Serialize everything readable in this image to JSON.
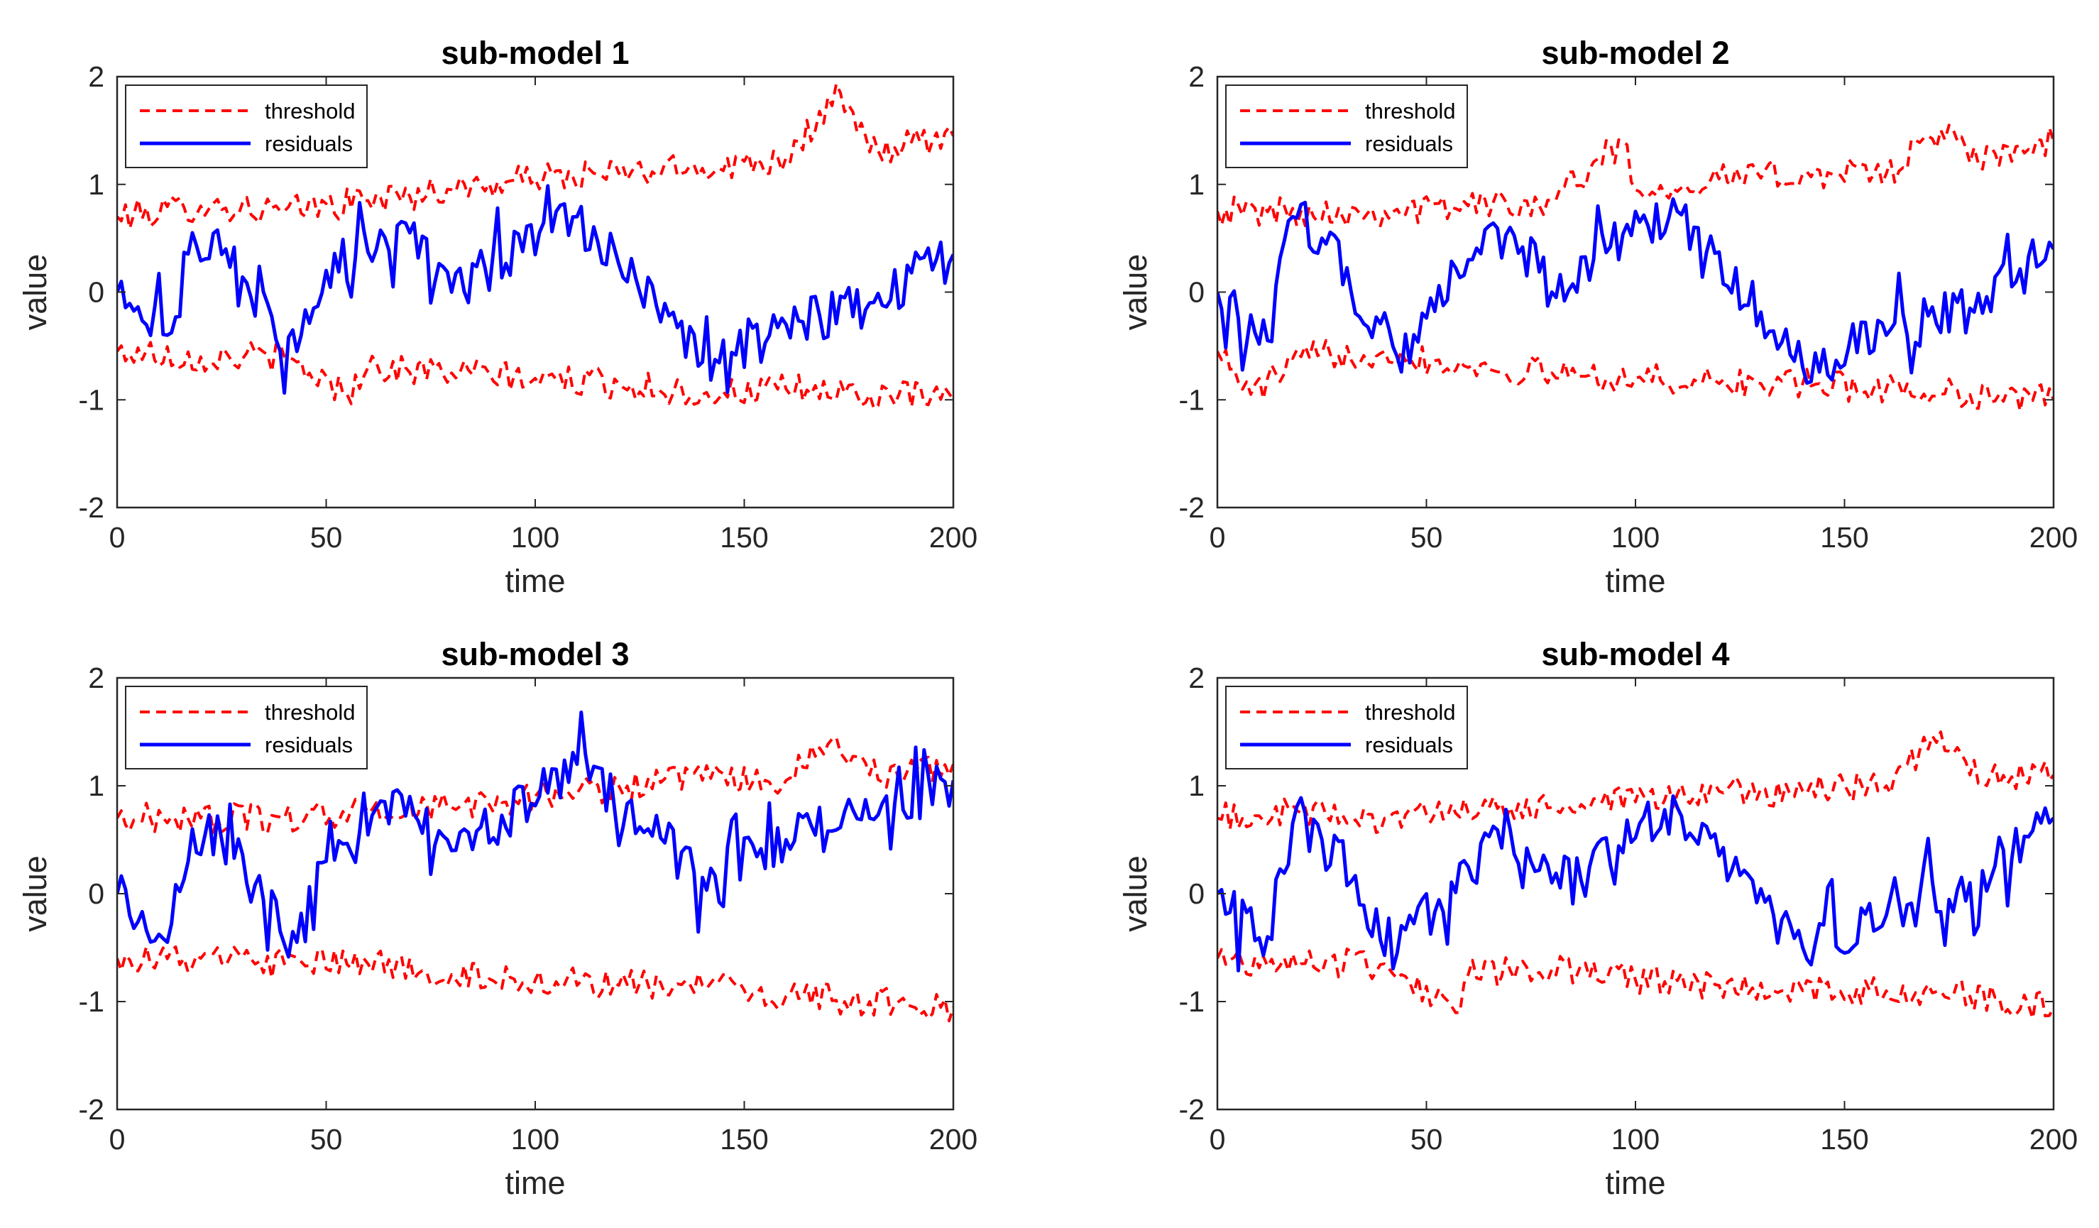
{
  "colors": {
    "threshold": "#ff0000",
    "residuals": "#0000ff",
    "axes": "#262626"
  },
  "chart_data": [
    {
      "type": "line",
      "title": "sub-model 1",
      "xlabel": "time",
      "ylabel": "value",
      "xlim": [
        0,
        200
      ],
      "ylim": [
        -2,
        2
      ],
      "xticks": [
        "0",
        "50",
        "100",
        "150",
        "200"
      ],
      "yticks": [
        "-2",
        "-1",
        "0",
        "1",
        "2"
      ],
      "legend": {
        "placement": "top-left",
        "entries": [
          "threshold",
          "residuals"
        ]
      },
      "series": [
        {
          "name": "threshold upper",
          "style": "dashed",
          "x": [
            0,
            20,
            40,
            60,
            80,
            100,
            120,
            140,
            160,
            173,
            180,
            200
          ],
          "values": [
            0.7,
            0.8,
            0.75,
            0.85,
            0.95,
            1.05,
            1.1,
            1.15,
            1.25,
            1.85,
            1.3,
            1.45
          ]
        },
        {
          "name": "threshold lower",
          "style": "dashed",
          "x": [
            0,
            20,
            40,
            55,
            60,
            80,
            100,
            120,
            140,
            160,
            180,
            200
          ],
          "values": [
            -0.55,
            -0.6,
            -0.6,
            -0.95,
            -0.7,
            -0.75,
            -0.8,
            -0.85,
            -0.95,
            -0.9,
            -0.95,
            -1.0
          ]
        },
        {
          "name": "residuals",
          "style": "solid",
          "x": [
            0,
            12,
            18,
            25,
            43,
            50,
            70,
            80,
            101,
            110,
            140,
            160,
            180,
            200
          ],
          "values": [
            0.0,
            -0.4,
            0.55,
            0.35,
            -0.55,
            0.2,
            0.55,
            0.0,
            0.55,
            0.7,
            -0.65,
            -0.3,
            -0.1,
            0.35
          ]
        }
      ]
    },
    {
      "type": "line",
      "title": "sub-model 2",
      "xlabel": "time",
      "ylabel": "value",
      "xlim": [
        0,
        200
      ],
      "ylim": [
        -2,
        2
      ],
      "xticks": [
        "0",
        "50",
        "100",
        "150",
        "200"
      ],
      "yticks": [
        "-2",
        "-1",
        "0",
        "1",
        "2"
      ],
      "legend": {
        "placement": "top-left",
        "entries": [
          "threshold",
          "residuals"
        ]
      },
      "series": [
        {
          "name": "threshold upper",
          "style": "dashed",
          "x": [
            0,
            20,
            40,
            60,
            80,
            97,
            100,
            120,
            140,
            160,
            175,
            180,
            200
          ],
          "values": [
            0.75,
            0.75,
            0.75,
            0.8,
            0.85,
            1.4,
            0.95,
            1.05,
            1.1,
            1.1,
            1.55,
            1.2,
            1.4
          ]
        },
        {
          "name": "threshold lower",
          "style": "dashed",
          "x": [
            0,
            8,
            20,
            40,
            60,
            80,
            100,
            120,
            140,
            160,
            180,
            200
          ],
          "values": [
            -0.55,
            -0.95,
            -0.6,
            -0.55,
            -0.7,
            -0.75,
            -0.8,
            -0.85,
            -0.85,
            -0.9,
            -0.95,
            -1.0
          ]
        },
        {
          "name": "residuals",
          "style": "solid",
          "x": [
            0,
            12,
            18,
            25,
            43,
            60,
            70,
            80,
            101,
            110,
            140,
            160,
            180,
            200
          ],
          "values": [
            0.0,
            -0.45,
            0.7,
            0.5,
            -0.6,
            0.3,
            0.6,
            0.0,
            0.65,
            0.75,
            -0.7,
            -0.4,
            -0.15,
            0.4
          ]
        }
      ]
    },
    {
      "type": "line",
      "title": "sub-model 3",
      "xlabel": "time",
      "ylabel": "value",
      "xlim": [
        0,
        200
      ],
      "ylim": [
        -2,
        2
      ],
      "xticks": [
        "0",
        "50",
        "100",
        "150",
        "200"
      ],
      "yticks": [
        "-2",
        "-1",
        "0",
        "1",
        "2"
      ],
      "legend": {
        "placement": "top-left",
        "entries": [
          "threshold",
          "residuals"
        ]
      },
      "series": [
        {
          "name": "threshold upper",
          "style": "dashed",
          "x": [
            0,
            20,
            40,
            60,
            80,
            100,
            120,
            140,
            160,
            172,
            180,
            200
          ],
          "values": [
            0.7,
            0.7,
            0.7,
            0.75,
            0.8,
            0.9,
            1.0,
            1.05,
            1.05,
            1.45,
            1.1,
            1.2
          ]
        },
        {
          "name": "threshold lower",
          "style": "dashed",
          "x": [
            0,
            20,
            40,
            60,
            80,
            100,
            120,
            140,
            160,
            180,
            200
          ],
          "values": [
            -0.6,
            -0.6,
            -0.65,
            -0.65,
            -0.75,
            -0.8,
            -0.85,
            -0.85,
            -0.95,
            -1.0,
            -1.05
          ]
        },
        {
          "name": "residuals",
          "style": "solid",
          "x": [
            0,
            12,
            18,
            25,
            43,
            50,
            70,
            80,
            101,
            110,
            140,
            160,
            180,
            200
          ],
          "values": [
            0.0,
            -0.45,
            0.6,
            0.5,
            -0.45,
            0.3,
            0.9,
            0.4,
            0.9,
            1.2,
            0.15,
            0.5,
            0.7,
            1.05
          ]
        }
      ]
    },
    {
      "type": "line",
      "title": "sub-model 4",
      "xlabel": "time",
      "ylabel": "value",
      "xlim": [
        0,
        200
      ],
      "ylim": [
        -2,
        2
      ],
      "xticks": [
        "0",
        "50",
        "100",
        "150",
        "200"
      ],
      "yticks": [
        "-2",
        "-1",
        "0",
        "1",
        "2"
      ],
      "legend": {
        "placement": "top-left",
        "entries": [
          "threshold",
          "residuals"
        ]
      },
      "series": [
        {
          "name": "threshold upper",
          "style": "dashed",
          "x": [
            0,
            20,
            40,
            60,
            80,
            100,
            120,
            140,
            160,
            173,
            180,
            200
          ],
          "values": [
            0.7,
            0.75,
            0.7,
            0.75,
            0.8,
            0.85,
            0.95,
            0.95,
            1.0,
            1.5,
            1.1,
            1.1
          ]
        },
        {
          "name": "threshold lower",
          "style": "dashed",
          "x": [
            0,
            20,
            40,
            58,
            60,
            80,
            100,
            120,
            140,
            160,
            180,
            200
          ],
          "values": [
            -0.6,
            -0.65,
            -0.65,
            -1.1,
            -0.75,
            -0.7,
            -0.8,
            -0.85,
            -0.9,
            -0.9,
            -0.95,
            -1.05
          ]
        },
        {
          "name": "residuals",
          "style": "solid",
          "x": [
            0,
            12,
            18,
            25,
            43,
            60,
            70,
            80,
            101,
            110,
            140,
            160,
            180,
            200
          ],
          "values": [
            0.0,
            -0.4,
            0.65,
            0.5,
            -0.55,
            0.25,
            0.6,
            0.1,
            0.65,
            0.8,
            -0.5,
            -0.2,
            0.1,
            0.7
          ]
        }
      ]
    }
  ]
}
